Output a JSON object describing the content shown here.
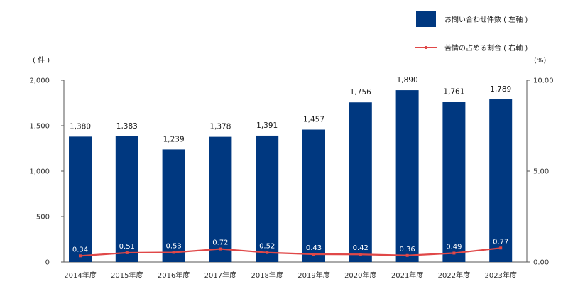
{
  "chart_data": {
    "type": "bar",
    "categories": [
      "2014年度",
      "2015年度",
      "2016年度",
      "2017年度",
      "2018年度",
      "2019年度",
      "2020年度",
      "2021年度",
      "2022年度",
      "2023年度"
    ],
    "series": [
      {
        "name": "お問い合わせ件数 ( 左軸 )",
        "type": "bar",
        "axis": "left",
        "color": "#003880",
        "values": [
          1380,
          1383,
          1239,
          1378,
          1391,
          1457,
          1756,
          1890,
          1761,
          1789
        ],
        "labels": [
          "1,380",
          "1,383",
          "1,239",
          "1,378",
          "1,391",
          "1,457",
          "1,756",
          "1,890",
          "1,761",
          "1,789"
        ]
      },
      {
        "name": "苦情の占める割合 ( 右軸 )",
        "type": "line",
        "axis": "right",
        "color": "#e04848",
        "values": [
          0.34,
          0.51,
          0.53,
          0.72,
          0.52,
          0.43,
          0.42,
          0.36,
          0.49,
          0.77
        ],
        "labels": [
          "0.34",
          "0.51",
          "0.53",
          "0.72",
          "0.52",
          "0.43",
          "0.42",
          "0.36",
          "0.49",
          "0.77"
        ]
      }
    ],
    "left_axis": {
      "unit": "( 件 )",
      "ylim": [
        0,
        2000
      ],
      "ticks": [
        0,
        500,
        1000,
        1500,
        2000
      ],
      "tick_labels": [
        "0",
        "500",
        "1,000",
        "1,500",
        "2,000"
      ]
    },
    "right_axis": {
      "unit": "(%)",
      "ylim": [
        0,
        10
      ],
      "ticks": [
        0,
        5,
        10
      ],
      "tick_labels": [
        "0.00",
        "5.00",
        "10.00"
      ]
    },
    "legend_position": "top-right",
    "grid": false
  }
}
